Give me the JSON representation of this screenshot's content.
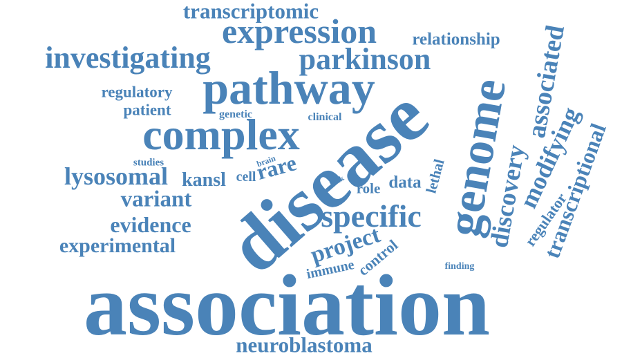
{
  "color": "#4a83b8",
  "words": [
    {
      "text": "association"
    },
    {
      "text": "disease"
    },
    {
      "text": "genome"
    },
    {
      "text": "pathway"
    },
    {
      "text": "complex"
    },
    {
      "text": "expression"
    },
    {
      "text": "investigating"
    },
    {
      "text": "parkinson"
    },
    {
      "text": "transcriptomic"
    },
    {
      "text": "relationship"
    },
    {
      "text": "associated"
    },
    {
      "text": "discovery"
    },
    {
      "text": "modifying"
    },
    {
      "text": "transcriptional"
    },
    {
      "text": "regulator"
    },
    {
      "text": "neuroblastoma"
    },
    {
      "text": "specific"
    },
    {
      "text": "lysosomal"
    },
    {
      "text": "variant"
    },
    {
      "text": "evidence"
    },
    {
      "text": "experimental"
    },
    {
      "text": "project"
    },
    {
      "text": "control"
    },
    {
      "text": "immune"
    },
    {
      "text": "regulatory"
    },
    {
      "text": "patient"
    },
    {
      "text": "genetic"
    },
    {
      "text": "clinical"
    },
    {
      "text": "studies"
    },
    {
      "text": "brain"
    },
    {
      "text": "kansl"
    },
    {
      "text": "cell"
    },
    {
      "text": "rare"
    },
    {
      "text": "bulk"
    },
    {
      "text": "role"
    },
    {
      "text": "data"
    },
    {
      "text": "lethal"
    },
    {
      "text": "finding"
    }
  ]
}
